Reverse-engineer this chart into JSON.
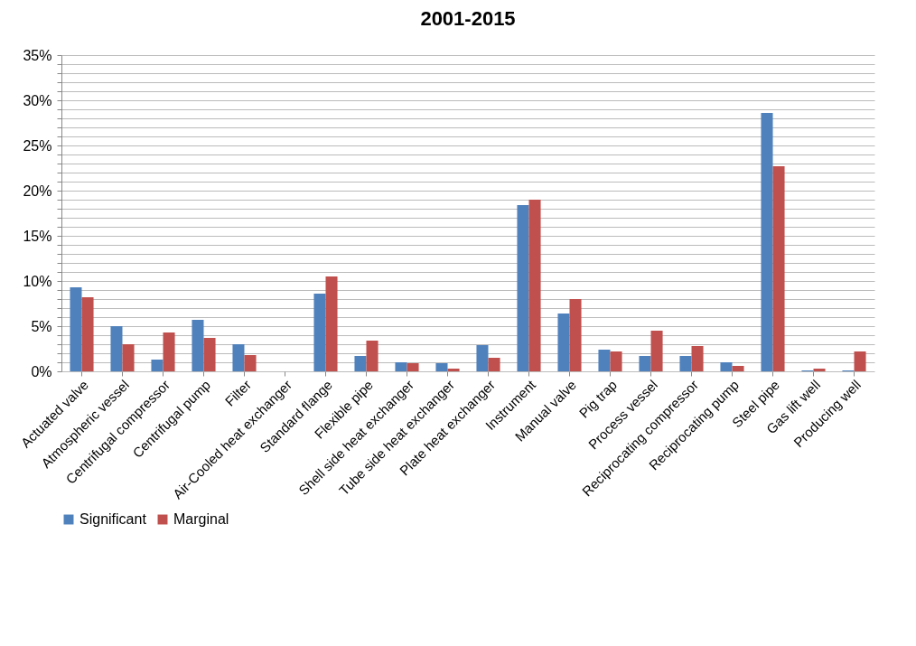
{
  "chart_data": {
    "type": "bar",
    "title": "2001-2015",
    "categories": [
      "Actuated valve",
      "Atmospheric vessel",
      "Centrifugal compressor",
      "Centrifugal pump",
      "Filter",
      "Air-Cooled heat exchanger",
      "Standard flange",
      "Flexible pipe",
      "Shell side heat exchanger",
      "Tube side heat exchanger",
      "Plate heat exchanger",
      "Instrument",
      "Manual valve",
      "Pig trap",
      "Process vessel",
      "Reciprocating compressor",
      "Reciprocating pump",
      "Steel pipe",
      "Gas lift well",
      "Producing well"
    ],
    "series": [
      {
        "name": "Significant",
        "color": "#4f81bd",
        "values": [
          9.3,
          5.0,
          1.3,
          5.7,
          3.0,
          0,
          8.6,
          1.7,
          1.0,
          0.9,
          2.9,
          18.4,
          6.4,
          2.4,
          1.7,
          1.7,
          1.0,
          28.6,
          0.1,
          0.1
        ]
      },
      {
        "name": "Marginal",
        "color": "#c0504d",
        "values": [
          8.2,
          3.0,
          4.3,
          3.7,
          1.8,
          0,
          10.5,
          3.4,
          0.9,
          0.3,
          1.5,
          19.0,
          8.0,
          2.2,
          4.5,
          2.8,
          0.6,
          22.7,
          0.3,
          2.2
        ]
      }
    ],
    "ylim": [
      0,
      35
    ],
    "yticks": [
      {
        "value": 0,
        "label": "0%"
      },
      {
        "value": 1,
        "label": null
      },
      {
        "value": 2,
        "label": null
      },
      {
        "value": 3,
        "label": null
      },
      {
        "value": 4,
        "label": null
      },
      {
        "value": 5,
        "label": "5%"
      },
      {
        "value": 6,
        "label": null
      },
      {
        "value": 7,
        "label": null
      },
      {
        "value": 8,
        "label": null
      },
      {
        "value": 9,
        "label": null
      },
      {
        "value": 10,
        "label": "10%"
      },
      {
        "value": 11,
        "label": null
      },
      {
        "value": 12,
        "label": null
      },
      {
        "value": 13,
        "label": null
      },
      {
        "value": 14,
        "label": null
      },
      {
        "value": 15,
        "label": "15%"
      },
      {
        "value": 16,
        "label": null
      },
      {
        "value": 17,
        "label": null
      },
      {
        "value": 18,
        "label": null
      },
      {
        "value": 19,
        "label": null
      },
      {
        "value": 20,
        "label": "20%"
      },
      {
        "value": 21,
        "label": null
      },
      {
        "value": 22,
        "label": null
      },
      {
        "value": 23,
        "label": null
      },
      {
        "value": 24,
        "label": null
      },
      {
        "value": 25,
        "label": "25%"
      },
      {
        "value": 26,
        "label": null
      },
      {
        "value": 27,
        "label": null
      },
      {
        "value": 28,
        "label": null
      },
      {
        "value": 29,
        "label": null
      },
      {
        "value": 30,
        "label": "30%"
      },
      {
        "value": 31,
        "label": null
      },
      {
        "value": 32,
        "label": null
      },
      {
        "value": 33,
        "label": null
      },
      {
        "value": 34,
        "label": null
      },
      {
        "value": 35,
        "label": "35%"
      }
    ],
    "grid": true,
    "legend": "bottom"
  }
}
